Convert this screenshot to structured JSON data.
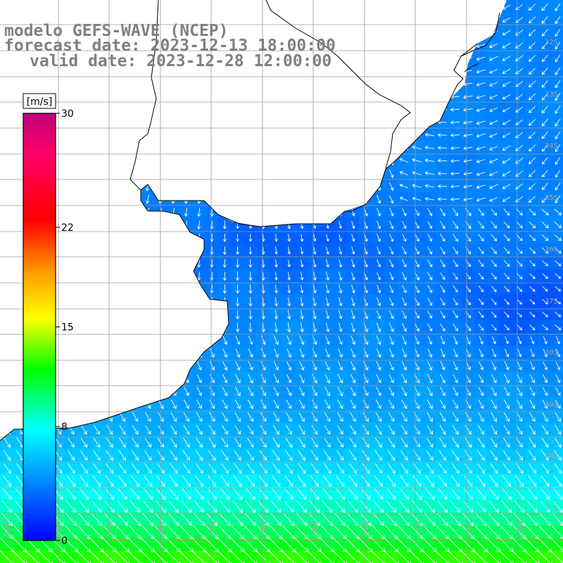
{
  "title": {
    "line1": "modelo GEFS-WAVE (NCEP)",
    "line2": "forecast date: 2023-12-13 18:00:00",
    "line3": "valid date: 2023-12-28 12:00:00"
  },
  "colorbar": {
    "unit": "[m/s]",
    "ticks": [
      {
        "label": "30",
        "value": 30
      },
      {
        "label": "22",
        "value": 22
      },
      {
        "label": "15",
        "value": 15
      },
      {
        "label": "8",
        "value": 8
      },
      {
        "label": "0",
        "value": 0
      }
    ],
    "colors": [
      "#0000ff",
      "#00aaff",
      "#00ffff",
      "#00ff00",
      "#ffff00",
      "#ff8800",
      "#ff0000",
      "#ff0088",
      "#c0007a"
    ]
  },
  "map": {
    "variable": "wind speed with direction arrows",
    "land_color": "#ffffff",
    "grid_color": "#9a9a9a",
    "coastline_color": "#000000",
    "arrow_color": "#ffffff",
    "lat_labels": [
      "32S",
      "33S",
      "34S",
      "35S",
      "36S",
      "37S",
      "38S",
      "39S",
      "40S",
      "41S"
    ],
    "lon_labels": [
      "61W",
      "60W",
      "59W",
      "58W",
      "57W",
      "56W",
      "55W",
      "54W",
      "53W",
      "52W",
      "51W"
    ],
    "wind_range_ms": [
      3,
      9
    ]
  }
}
